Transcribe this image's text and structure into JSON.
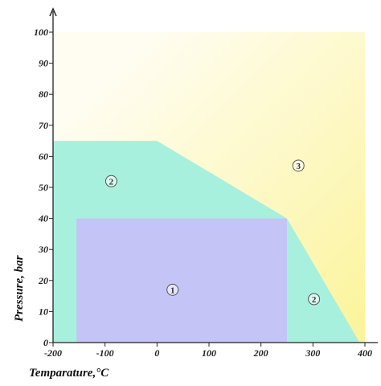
{
  "chart_data": {
    "type": "area",
    "xlabel": "Temparature,°C",
    "ylabel": "Pressure, bar",
    "xlim": [
      -200,
      400
    ],
    "ylim": [
      0,
      100
    ],
    "x_ticks": [
      -200,
      -100,
      0,
      100,
      200,
      300,
      400
    ],
    "y_ticks": [
      0,
      10,
      20,
      30,
      40,
      50,
      60,
      70,
      80,
      90,
      100
    ],
    "x_tick_labels": [
      "-200",
      "-100",
      "0",
      "100",
      "200",
      "300",
      "400"
    ],
    "y_tick_labels": [
      "0",
      "10",
      "20",
      "30",
      "40",
      "50",
      "60",
      "70",
      "80",
      "90",
      "100"
    ],
    "grid": false,
    "regions": [
      {
        "label": "3",
        "color_start": "#fffdf2",
        "color_end": "#fbf49a",
        "polygon": [
          [
            -200,
            0
          ],
          [
            -200,
            100
          ],
          [
            400,
            100
          ],
          [
            400,
            0
          ]
        ],
        "label_at": [
          272,
          57
        ]
      },
      {
        "label": "2",
        "color": "#a8f0de",
        "polygon": [
          [
            -200,
            0
          ],
          [
            -200,
            65
          ],
          [
            0,
            65
          ],
          [
            250,
            40
          ],
          [
            390,
            0
          ]
        ],
        "label_at": [
          -88,
          52
        ]
      },
      {
        "label": "1",
        "color": "#c4c4f6",
        "polygon": [
          [
            -155,
            0
          ],
          [
            -155,
            40
          ],
          [
            250,
            40
          ],
          [
            250,
            0
          ]
        ],
        "label_at": [
          30,
          17
        ]
      }
    ],
    "extra_labels": [
      {
        "label": "2",
        "at": [
          302,
          14
        ]
      }
    ]
  }
}
